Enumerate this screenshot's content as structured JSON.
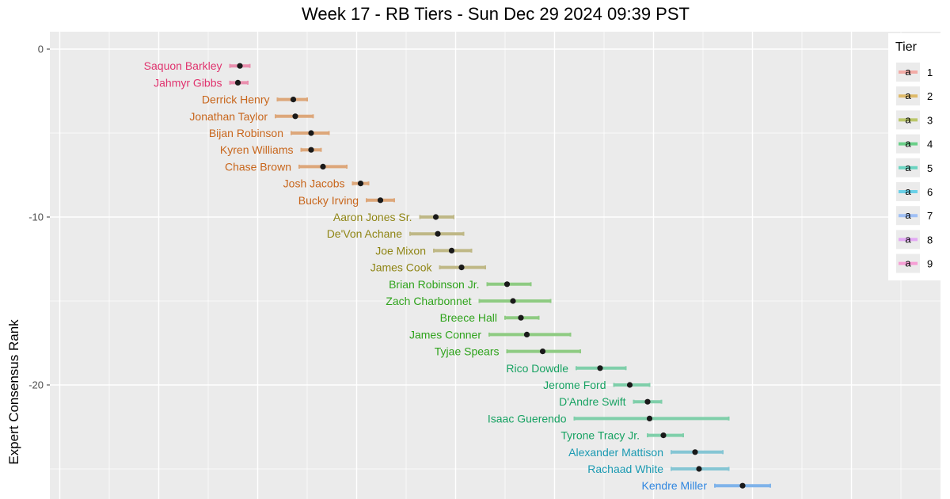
{
  "chart_data": {
    "type": "scatter",
    "title": "Week 17 - RB Tiers - Sun Dec 29 2024 09:39 PST",
    "xlabel": "",
    "ylabel": "Expert Consensus Rank",
    "y_ticks": [
      0,
      -10,
      -20
    ],
    "y_tick_labels": [
      "0",
      "-10",
      "-20"
    ],
    "ylim": [
      -26.3,
      1.5
    ],
    "xlim": [
      -0.5,
      44.5
    ],
    "grid": true,
    "legend": {
      "title": "Tier",
      "placement": "right",
      "glyph": "a",
      "entries": [
        {
          "label": "1",
          "color": "#F8766D"
        },
        {
          "label": "2",
          "color": "#D39200"
        },
        {
          "label": "3",
          "color": "#93AA00"
        },
        {
          "label": "4",
          "color": "#00BA38"
        },
        {
          "label": "5",
          "color": "#00C19F"
        },
        {
          "label": "6",
          "color": "#00B9E3"
        },
        {
          "label": "7",
          "color": "#619CFF"
        },
        {
          "label": "8",
          "color": "#DB72FB"
        },
        {
          "label": "9",
          "color": "#FF61C3"
        }
      ]
    },
    "tier_label_colors": {
      "1": "#E0336E",
      "2": "#C8661C",
      "3": "#8F8515",
      "4": "#2FA31C",
      "5": "#17A262",
      "6": "#1B9AB2",
      "7": "#2F86E0"
    },
    "tier_bar_colors": {
      "1": "#EA8FAE",
      "2": "#DDA77A",
      "3": "#BFB886",
      "4": "#8ECB82",
      "5": "#7FCFAA",
      "6": "#85C6D4",
      "7": "#7FB3EA"
    },
    "players": [
      {
        "name": "Saquon Barkley",
        "tier": 1,
        "x": 9.1,
        "xmin": 8.6,
        "xmax": 9.6,
        "rank": -1
      },
      {
        "name": "Jahmyr Gibbs",
        "tier": 1,
        "x": 9.0,
        "xmin": 8.6,
        "xmax": 9.5,
        "rank": -2
      },
      {
        "name": "Derrick Henry",
        "tier": 2,
        "x": 11.8,
        "xmin": 11.0,
        "xmax": 12.5,
        "rank": -3
      },
      {
        "name": "Jonathan Taylor",
        "tier": 2,
        "x": 11.9,
        "xmin": 10.9,
        "xmax": 12.8,
        "rank": -4
      },
      {
        "name": "Bijan Robinson",
        "tier": 2,
        "x": 12.7,
        "xmin": 11.7,
        "xmax": 13.6,
        "rank": -5
      },
      {
        "name": "Kyren Williams",
        "tier": 2,
        "x": 12.7,
        "xmin": 12.2,
        "xmax": 13.2,
        "rank": -6
      },
      {
        "name": "Chase Brown",
        "tier": 2,
        "x": 13.3,
        "xmin": 12.1,
        "xmax": 14.5,
        "rank": -7
      },
      {
        "name": "Josh Jacobs",
        "tier": 2,
        "x": 15.2,
        "xmin": 14.8,
        "xmax": 15.6,
        "rank": -8
      },
      {
        "name": "Bucky Irving",
        "tier": 2,
        "x": 16.2,
        "xmin": 15.5,
        "xmax": 16.9,
        "rank": -9
      },
      {
        "name": "Aaron Jones Sr.",
        "tier": 3,
        "x": 19.0,
        "xmin": 18.2,
        "xmax": 19.9,
        "rank": -10
      },
      {
        "name": "De'Von Achane",
        "tier": 3,
        "x": 19.1,
        "xmin": 17.7,
        "xmax": 20.4,
        "rank": -11
      },
      {
        "name": "Joe Mixon",
        "tier": 3,
        "x": 19.8,
        "xmin": 18.9,
        "xmax": 20.8,
        "rank": -12
      },
      {
        "name": "James Cook",
        "tier": 3,
        "x": 20.3,
        "xmin": 19.2,
        "xmax": 21.5,
        "rank": -13
      },
      {
        "name": "Brian Robinson Jr.",
        "tier": 4,
        "x": 22.6,
        "xmin": 21.6,
        "xmax": 23.8,
        "rank": -14
      },
      {
        "name": "Zach Charbonnet",
        "tier": 4,
        "x": 22.9,
        "xmin": 21.2,
        "xmax": 24.8,
        "rank": -15
      },
      {
        "name": "Breece Hall",
        "tier": 4,
        "x": 23.3,
        "xmin": 22.5,
        "xmax": 24.2,
        "rank": -16
      },
      {
        "name": "James Conner",
        "tier": 4,
        "x": 23.6,
        "xmin": 21.7,
        "xmax": 25.8,
        "rank": -17
      },
      {
        "name": "Tyjae Spears",
        "tier": 4,
        "x": 24.4,
        "xmin": 22.6,
        "xmax": 26.3,
        "rank": -18
      },
      {
        "name": "Rico Dowdle",
        "tier": 5,
        "x": 27.3,
        "xmin": 26.1,
        "xmax": 28.6,
        "rank": -19
      },
      {
        "name": "Jerome Ford",
        "tier": 5,
        "x": 28.8,
        "xmin": 28.0,
        "xmax": 29.8,
        "rank": -20
      },
      {
        "name": "D'Andre Swift",
        "tier": 5,
        "x": 29.7,
        "xmin": 29.0,
        "xmax": 30.4,
        "rank": -21
      },
      {
        "name": "Isaac Guerendo",
        "tier": 5,
        "x": 29.8,
        "xmin": 26.0,
        "xmax": 33.8,
        "rank": -22
      },
      {
        "name": "Tyrone Tracy Jr.",
        "tier": 5,
        "x": 30.5,
        "xmin": 29.7,
        "xmax": 31.5,
        "rank": -23
      },
      {
        "name": "Alexander Mattison",
        "tier": 6,
        "x": 32.1,
        "xmin": 30.9,
        "xmax": 33.5,
        "rank": -24
      },
      {
        "name": "Rachaad White",
        "tier": 6,
        "x": 32.3,
        "xmin": 30.9,
        "xmax": 33.8,
        "rank": -25
      },
      {
        "name": "Kendre Miller",
        "tier": 7,
        "x": 34.5,
        "xmin": 33.1,
        "xmax": 35.9,
        "rank": -26
      }
    ]
  }
}
